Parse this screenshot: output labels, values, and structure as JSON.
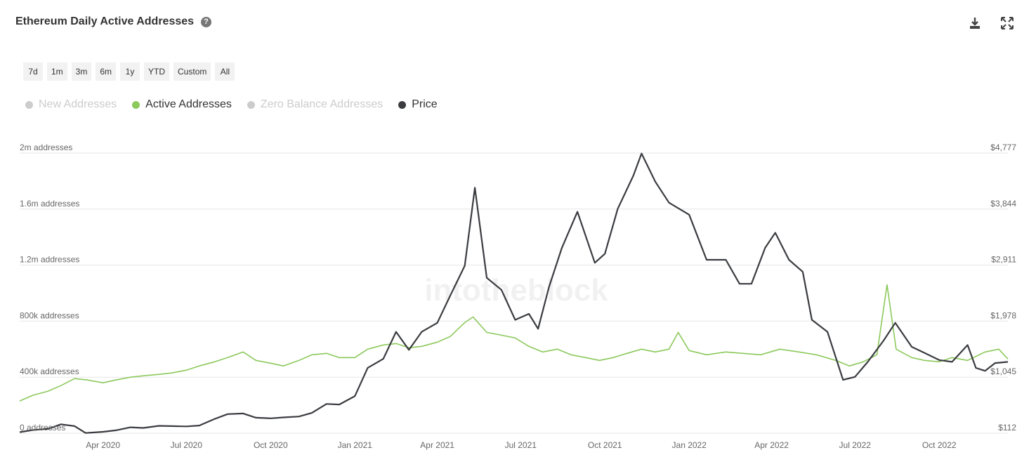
{
  "header": {
    "title": "Ethereum Daily Active Addresses",
    "help_icon": "question-circle-icon",
    "download_icon": "download-icon",
    "expand_icon": "expand-icon"
  },
  "ranges": [
    "7d",
    "1m",
    "3m",
    "6m",
    "1y",
    "YTD",
    "Custom",
    "All"
  ],
  "legend": [
    {
      "label": "New Addresses",
      "color": "#cccccc",
      "enabled": false
    },
    {
      "label": "Active Addresses",
      "color": "#8cc95c",
      "enabled": true
    },
    {
      "label": "Zero Balance Addresses",
      "color": "#cccccc",
      "enabled": false
    },
    {
      "label": "Price",
      "color": "#3a3c40",
      "enabled": true
    }
  ],
  "watermark": "intotheblock",
  "chart_data": {
    "type": "line",
    "y_left": {
      "ticks": [
        0,
        400000,
        800000,
        1200000,
        1600000,
        2000000
      ],
      "tick_labels": [
        "0 addresses",
        "400k addresses",
        "800k addresses",
        "1.2m addresses",
        "1.6m addresses",
        "2m addresses"
      ],
      "range": [
        0,
        2000000
      ]
    },
    "y_right": {
      "ticks": [
        112,
        1045,
        1978,
        2911,
        3844,
        4777
      ],
      "tick_labels": [
        "$112",
        "$1,045",
        "$1,978",
        "$2,911",
        "$3,844",
        "$4,777"
      ],
      "range": [
        112,
        4777
      ]
    },
    "x_axis": {
      "ticks": [
        "2020-04-01",
        "2020-07-01",
        "2020-10-01",
        "2021-01-01",
        "2021-04-01",
        "2021-07-01",
        "2021-10-01",
        "2022-01-01",
        "2022-04-01",
        "2022-07-01",
        "2022-10-01"
      ],
      "tick_labels": [
        "Apr 2020",
        "Jul 2020",
        "Oct 2020",
        "Jan 2021",
        "Apr 2021",
        "Jul 2021",
        "Oct 2021",
        "Jan 2022",
        "Apr 2022",
        "Jul 2022",
        "Oct 2022"
      ],
      "range": [
        "2020-01-01",
        "2022-12-15"
      ]
    },
    "grid": true,
    "legend_position": "top-left",
    "series": [
      {
        "name": "Active Addresses",
        "axis": "left",
        "color": "#8cc95c",
        "points": [
          [
            "2020-01-01",
            230000
          ],
          [
            "2020-01-15",
            270000
          ],
          [
            "2020-02-01",
            300000
          ],
          [
            "2020-02-15",
            340000
          ],
          [
            "2020-03-01",
            390000
          ],
          [
            "2020-03-15",
            380000
          ],
          [
            "2020-04-01",
            360000
          ],
          [
            "2020-04-15",
            380000
          ],
          [
            "2020-05-01",
            400000
          ],
          [
            "2020-05-15",
            410000
          ],
          [
            "2020-06-01",
            420000
          ],
          [
            "2020-06-15",
            430000
          ],
          [
            "2020-07-01",
            450000
          ],
          [
            "2020-07-15",
            480000
          ],
          [
            "2020-08-01",
            510000
          ],
          [
            "2020-08-15",
            540000
          ],
          [
            "2020-09-01",
            580000
          ],
          [
            "2020-09-15",
            520000
          ],
          [
            "2020-10-01",
            500000
          ],
          [
            "2020-10-15",
            480000
          ],
          [
            "2020-11-01",
            520000
          ],
          [
            "2020-11-15",
            560000
          ],
          [
            "2020-12-01",
            570000
          ],
          [
            "2020-12-15",
            540000
          ],
          [
            "2021-01-01",
            540000
          ],
          [
            "2021-01-15",
            600000
          ],
          [
            "2021-02-01",
            630000
          ],
          [
            "2021-02-15",
            640000
          ],
          [
            "2021-03-01",
            610000
          ],
          [
            "2021-03-15",
            620000
          ],
          [
            "2021-04-01",
            650000
          ],
          [
            "2021-04-15",
            690000
          ],
          [
            "2021-05-01",
            790000
          ],
          [
            "2021-05-10",
            830000
          ],
          [
            "2021-05-25",
            720000
          ],
          [
            "2021-06-10",
            700000
          ],
          [
            "2021-06-25",
            680000
          ],
          [
            "2021-07-10",
            620000
          ],
          [
            "2021-07-25",
            580000
          ],
          [
            "2021-08-10",
            600000
          ],
          [
            "2021-08-25",
            560000
          ],
          [
            "2021-09-10",
            540000
          ],
          [
            "2021-09-25",
            520000
          ],
          [
            "2021-10-10",
            540000
          ],
          [
            "2021-10-25",
            570000
          ],
          [
            "2021-11-10",
            600000
          ],
          [
            "2021-11-25",
            580000
          ],
          [
            "2021-12-10",
            600000
          ],
          [
            "2021-12-20",
            720000
          ],
          [
            "2022-01-01",
            590000
          ],
          [
            "2022-01-20",
            560000
          ],
          [
            "2022-02-10",
            580000
          ],
          [
            "2022-03-01",
            570000
          ],
          [
            "2022-03-20",
            560000
          ],
          [
            "2022-04-10",
            600000
          ],
          [
            "2022-05-01",
            580000
          ],
          [
            "2022-05-20",
            560000
          ],
          [
            "2022-06-10",
            520000
          ],
          [
            "2022-06-25",
            480000
          ],
          [
            "2022-07-10",
            510000
          ],
          [
            "2022-07-25",
            560000
          ],
          [
            "2022-08-05",
            1060000
          ],
          [
            "2022-08-15",
            600000
          ],
          [
            "2022-09-01",
            540000
          ],
          [
            "2022-09-15",
            520000
          ],
          [
            "2022-10-01",
            510000
          ],
          [
            "2022-10-15",
            540000
          ],
          [
            "2022-11-01",
            520000
          ],
          [
            "2022-11-20",
            580000
          ],
          [
            "2022-12-05",
            600000
          ],
          [
            "2022-12-15",
            530000
          ]
        ]
      },
      {
        "name": "Price",
        "axis": "right",
        "color": "#3a3c40",
        "points": [
          [
            "2020-01-01",
            130
          ],
          [
            "2020-01-15",
            165
          ],
          [
            "2020-02-01",
            185
          ],
          [
            "2020-02-15",
            260
          ],
          [
            "2020-03-01",
            230
          ],
          [
            "2020-03-13",
            115
          ],
          [
            "2020-04-01",
            135
          ],
          [
            "2020-04-15",
            160
          ],
          [
            "2020-05-01",
            210
          ],
          [
            "2020-05-15",
            200
          ],
          [
            "2020-06-01",
            235
          ],
          [
            "2020-06-15",
            230
          ],
          [
            "2020-07-01",
            225
          ],
          [
            "2020-07-15",
            240
          ],
          [
            "2020-08-01",
            350
          ],
          [
            "2020-08-15",
            430
          ],
          [
            "2020-09-01",
            440
          ],
          [
            "2020-09-15",
            370
          ],
          [
            "2020-10-01",
            360
          ],
          [
            "2020-10-15",
            375
          ],
          [
            "2020-11-01",
            390
          ],
          [
            "2020-11-15",
            450
          ],
          [
            "2020-12-01",
            600
          ],
          [
            "2020-12-15",
            590
          ],
          [
            "2021-01-01",
            730
          ],
          [
            "2021-01-15",
            1200
          ],
          [
            "2021-02-01",
            1350
          ],
          [
            "2021-02-15",
            1800
          ],
          [
            "2021-03-01",
            1500
          ],
          [
            "2021-03-15",
            1800
          ],
          [
            "2021-04-01",
            1950
          ],
          [
            "2021-04-15",
            2400
          ],
          [
            "2021-05-01",
            2900
          ],
          [
            "2021-05-12",
            4200
          ],
          [
            "2021-05-25",
            2700
          ],
          [
            "2021-06-10",
            2500
          ],
          [
            "2021-06-25",
            2000
          ],
          [
            "2021-07-10",
            2100
          ],
          [
            "2021-07-20",
            1850
          ],
          [
            "2021-08-01",
            2550
          ],
          [
            "2021-08-15",
            3200
          ],
          [
            "2021-09-01",
            3800
          ],
          [
            "2021-09-20",
            2950
          ],
          [
            "2021-10-01",
            3100
          ],
          [
            "2021-10-15",
            3850
          ],
          [
            "2021-11-01",
            4400
          ],
          [
            "2021-11-10",
            4770
          ],
          [
            "2021-11-25",
            4300
          ],
          [
            "2021-12-10",
            3950
          ],
          [
            "2022-01-01",
            3750
          ],
          [
            "2022-01-20",
            3000
          ],
          [
            "2022-02-10",
            3000
          ],
          [
            "2022-02-25",
            2600
          ],
          [
            "2022-03-10",
            2600
          ],
          [
            "2022-03-25",
            3200
          ],
          [
            "2022-04-05",
            3450
          ],
          [
            "2022-04-20",
            3000
          ],
          [
            "2022-05-05",
            2800
          ],
          [
            "2022-05-15",
            2000
          ],
          [
            "2022-06-01",
            1800
          ],
          [
            "2022-06-18",
            1000
          ],
          [
            "2022-07-01",
            1050
          ],
          [
            "2022-07-15",
            1300
          ],
          [
            "2022-08-01",
            1650
          ],
          [
            "2022-08-14",
            1950
          ],
          [
            "2022-09-01",
            1550
          ],
          [
            "2022-09-15",
            1450
          ],
          [
            "2022-10-01",
            1330
          ],
          [
            "2022-10-15",
            1300
          ],
          [
            "2022-11-01",
            1580
          ],
          [
            "2022-11-10",
            1200
          ],
          [
            "2022-11-20",
            1150
          ],
          [
            "2022-12-01",
            1280
          ],
          [
            "2022-12-15",
            1300
          ]
        ]
      }
    ]
  }
}
